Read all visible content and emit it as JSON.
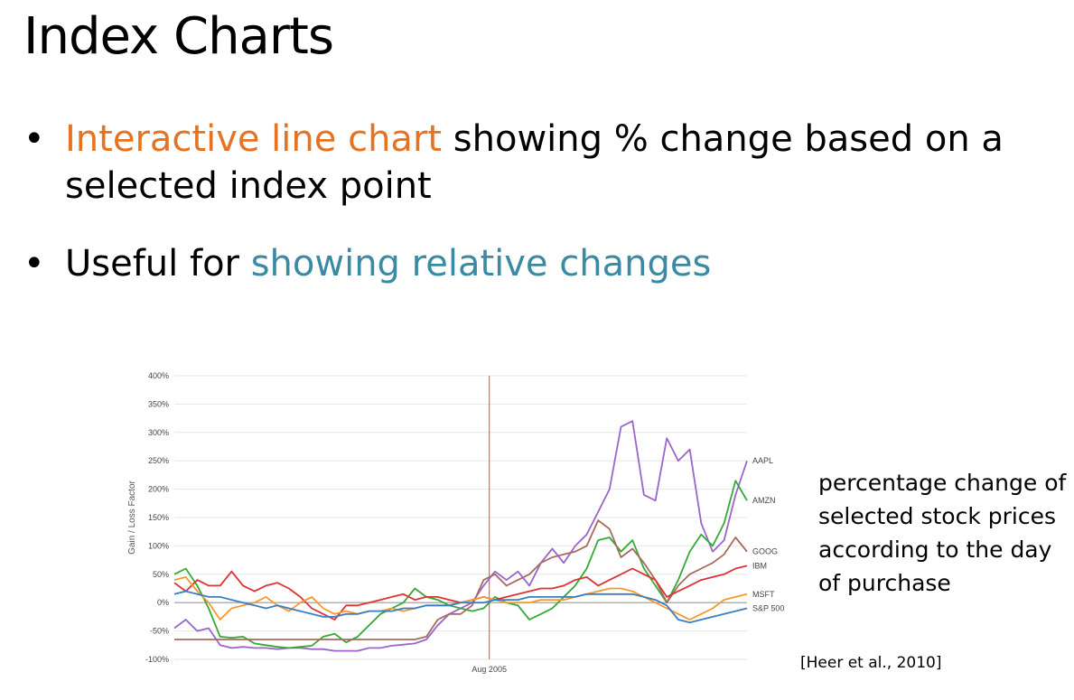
{
  "slide": {
    "title": "Index Charts",
    "bullets": [
      {
        "highlight": "Interactive line chart",
        "rest": " showing % change based on a selected index point",
        "highlight_color": "#e57321"
      },
      {
        "lead": "Useful for ",
        "highlight": "showing relative changes",
        "highlight_color": "#3a8aa3"
      }
    ],
    "caption": "percentage change of selected stock prices according to the day of purchase",
    "citation": "[Heer et al., 2010]"
  },
  "chart_data": {
    "type": "line",
    "ylabel": "Gain / Loss Factor",
    "ylim": [
      -100,
      400
    ],
    "yticks": [
      -100,
      -50,
      0,
      50,
      100,
      150,
      200,
      250,
      300,
      350,
      400
    ],
    "ytick_labels": [
      "-100%",
      "-50%",
      "0%",
      "50%",
      "100%",
      "150%",
      "200%",
      "250%",
      "300%",
      "350%",
      "400%"
    ],
    "index_label": "Aug 2005",
    "index_position": 0.55,
    "x": [
      0,
      0.02,
      0.04,
      0.06,
      0.08,
      0.1,
      0.12,
      0.14,
      0.16,
      0.18,
      0.2,
      0.22,
      0.24,
      0.26,
      0.28,
      0.3,
      0.32,
      0.34,
      0.36,
      0.38,
      0.4,
      0.42,
      0.44,
      0.46,
      0.48,
      0.5,
      0.52,
      0.54,
      0.56,
      0.58,
      0.6,
      0.62,
      0.64,
      0.66,
      0.68,
      0.7,
      0.72,
      0.74,
      0.76,
      0.78,
      0.8,
      0.82,
      0.84,
      0.86,
      0.88,
      0.9,
      0.92,
      0.94,
      0.96,
      0.98,
      1.0
    ],
    "series": [
      {
        "name": "AAPL",
        "color": "#9966cc",
        "values": [
          -45,
          -30,
          -50,
          -45,
          -75,
          -80,
          -78,
          -80,
          -80,
          -82,
          -80,
          -80,
          -82,
          -82,
          -85,
          -85,
          -85,
          -80,
          -80,
          -76,
          -74,
          -72,
          -65,
          -40,
          -20,
          -10,
          0,
          30,
          55,
          40,
          55,
          30,
          70,
          95,
          70,
          100,
          120,
          160,
          200,
          310,
          320,
          190,
          180,
          290,
          250,
          270,
          140,
          90,
          110,
          190,
          250
        ]
      },
      {
        "name": "AMZN",
        "color": "#33aa33",
        "values": [
          50,
          60,
          30,
          -10,
          -60,
          -62,
          -60,
          -72,
          -75,
          -78,
          -80,
          -78,
          -76,
          -60,
          -55,
          -70,
          -60,
          -40,
          -20,
          -10,
          0,
          25,
          10,
          5,
          -5,
          -10,
          -15,
          -10,
          10,
          0,
          -5,
          -30,
          -20,
          -10,
          10,
          30,
          60,
          110,
          115,
          90,
          110,
          60,
          30,
          0,
          40,
          90,
          120,
          100,
          140,
          215,
          180
        ]
      },
      {
        "name": "GOOG",
        "color": "#a66b5e",
        "values": [
          -65,
          -65,
          -65,
          -65,
          -65,
          -65,
          -65,
          -65,
          -65,
          -65,
          -65,
          -65,
          -65,
          -65,
          -65,
          -65,
          -65,
          -65,
          -65,
          -65,
          -65,
          -65,
          -60,
          -30,
          -20,
          -20,
          -5,
          40,
          50,
          30,
          40,
          50,
          70,
          80,
          85,
          90,
          100,
          145,
          130,
          80,
          95,
          70,
          40,
          0,
          30,
          50,
          60,
          70,
          85,
          115,
          90
        ]
      },
      {
        "name": "IBM",
        "color": "#dd3333",
        "values": [
          35,
          20,
          40,
          30,
          30,
          55,
          30,
          20,
          30,
          35,
          25,
          10,
          -10,
          -20,
          -30,
          -5,
          -5,
          0,
          5,
          10,
          15,
          5,
          10,
          10,
          5,
          0,
          5,
          10,
          5,
          10,
          15,
          20,
          25,
          25,
          30,
          40,
          45,
          30,
          40,
          50,
          60,
          50,
          40,
          10,
          20,
          30,
          40,
          45,
          50,
          60,
          65
        ]
      },
      {
        "name": "MSFT",
        "color": "#f59a2a",
        "values": [
          40,
          45,
          20,
          0,
          -30,
          -10,
          -5,
          0,
          10,
          -5,
          -15,
          0,
          10,
          -10,
          -20,
          -15,
          -20,
          -15,
          -15,
          -10,
          -15,
          -10,
          -5,
          -5,
          -5,
          0,
          5,
          10,
          5,
          0,
          0,
          0,
          5,
          5,
          5,
          10,
          15,
          20,
          25,
          25,
          20,
          10,
          0,
          -10,
          -20,
          -30,
          -20,
          -10,
          5,
          10,
          15
        ]
      },
      {
        "name": "S&P 500",
        "color": "#3b7ec2",
        "values": [
          15,
          20,
          15,
          10,
          10,
          5,
          0,
          -5,
          -10,
          -5,
          -10,
          -15,
          -20,
          -25,
          -25,
          -20,
          -20,
          -15,
          -15,
          -15,
          -10,
          -10,
          -5,
          -5,
          -5,
          0,
          0,
          0,
          5,
          5,
          5,
          10,
          10,
          10,
          10,
          10,
          15,
          15,
          15,
          15,
          15,
          10,
          5,
          -5,
          -30,
          -35,
          -30,
          -25,
          -20,
          -15,
          -10
        ]
      }
    ]
  }
}
